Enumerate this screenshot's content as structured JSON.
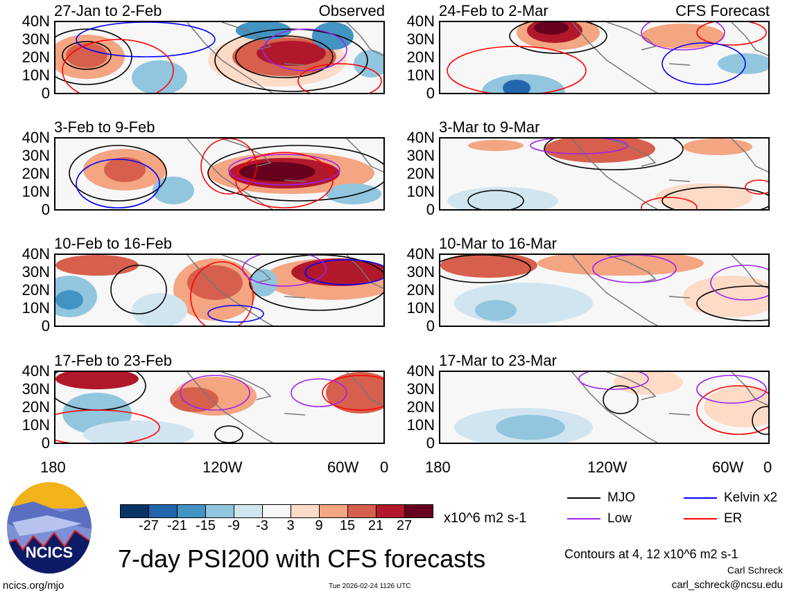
{
  "panels": [
    {
      "period": "27-Jan to 2-Feb",
      "tag": "Observed"
    },
    {
      "period": "24-Feb to 2-Mar",
      "tag": "CFS Forecast"
    },
    {
      "period": "3-Feb to 9-Feb",
      "tag": ""
    },
    {
      "period": "3-Mar to 9-Mar",
      "tag": ""
    },
    {
      "period": "10-Feb to 16-Feb",
      "tag": ""
    },
    {
      "period": "10-Mar to 16-Mar",
      "tag": ""
    },
    {
      "period": "17-Feb to 23-Feb",
      "tag": ""
    },
    {
      "period": "17-Mar to 23-Mar",
      "tag": ""
    }
  ],
  "y_ticks": [
    "40N",
    "30N",
    "20N",
    "10N",
    "0"
  ],
  "x_ticks": [
    "180",
    "120W",
    "60W",
    "0"
  ],
  "colorbar": {
    "colors": [
      "#0a3468",
      "#2266ac",
      "#4393c3",
      "#92c5de",
      "#d1e5f0",
      "#f7f7f7",
      "#fddbc7",
      "#f4a582",
      "#d6604d",
      "#b2182b",
      "#67001f"
    ],
    "labels": [
      "-27",
      "-21",
      "-15",
      "-9",
      "-3",
      "3",
      "9",
      "15",
      "21",
      "27"
    ],
    "units": "x10^6 m2 s-1"
  },
  "legend": [
    {
      "label": "MJO",
      "color": "#000000"
    },
    {
      "label": "Kelvin x2",
      "color": "#0000ff"
    },
    {
      "label": "Low",
      "color": "#a020f0"
    },
    {
      "label": "ER",
      "color": "#ff0000"
    }
  ],
  "title": "7-day PSI200 with CFS forecasts",
  "contours_note": "Contours at 4, 12 x10^6 m2 s-1",
  "author": "Carl Schreck",
  "email": "carl_schreck@ncsu.edu",
  "site": "ncics.org/mjo",
  "timestamp": "Tue 2026-02-24 1126 UTC",
  "logo_text": "NCICS"
}
